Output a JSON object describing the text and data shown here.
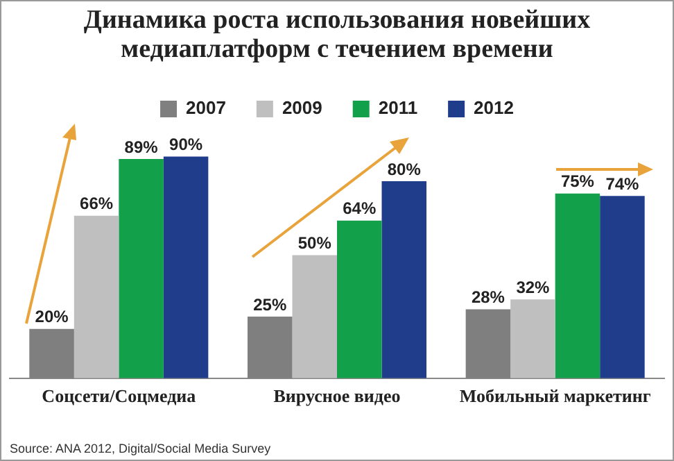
{
  "chart_data": {
    "type": "bar",
    "title": "Динамика роста использования новейших медиаплатформ с течением времени",
    "categories": [
      "Соцсети/Соцмедиа",
      "Вирусное видео",
      "Мобильный маркетинг"
    ],
    "series": [
      {
        "name": "2007",
        "color": "#7f7f7f",
        "values": [
          20,
          25,
          28
        ],
        "value_labels": [
          "20%",
          "25%",
          "28%"
        ]
      },
      {
        "name": "2009",
        "color": "#bfbfbf",
        "values": [
          66,
          50,
          32
        ],
        "value_labels": [
          "66%",
          "50%",
          "32%"
        ]
      },
      {
        "name": "2011",
        "color": "#13a04a",
        "values": [
          89,
          64,
          75
        ],
        "value_labels": [
          "89%",
          "64%",
          "75%"
        ]
      },
      {
        "name": "2012",
        "color": "#203d8c",
        "values": [
          90,
          80,
          74
        ],
        "value_labels": [
          "90%",
          "80%",
          "74%"
        ]
      }
    ],
    "legend": "top",
    "grid": false,
    "annotations": [
      "Source: ANA 2012, Digital/Social Media Survey"
    ]
  }
}
